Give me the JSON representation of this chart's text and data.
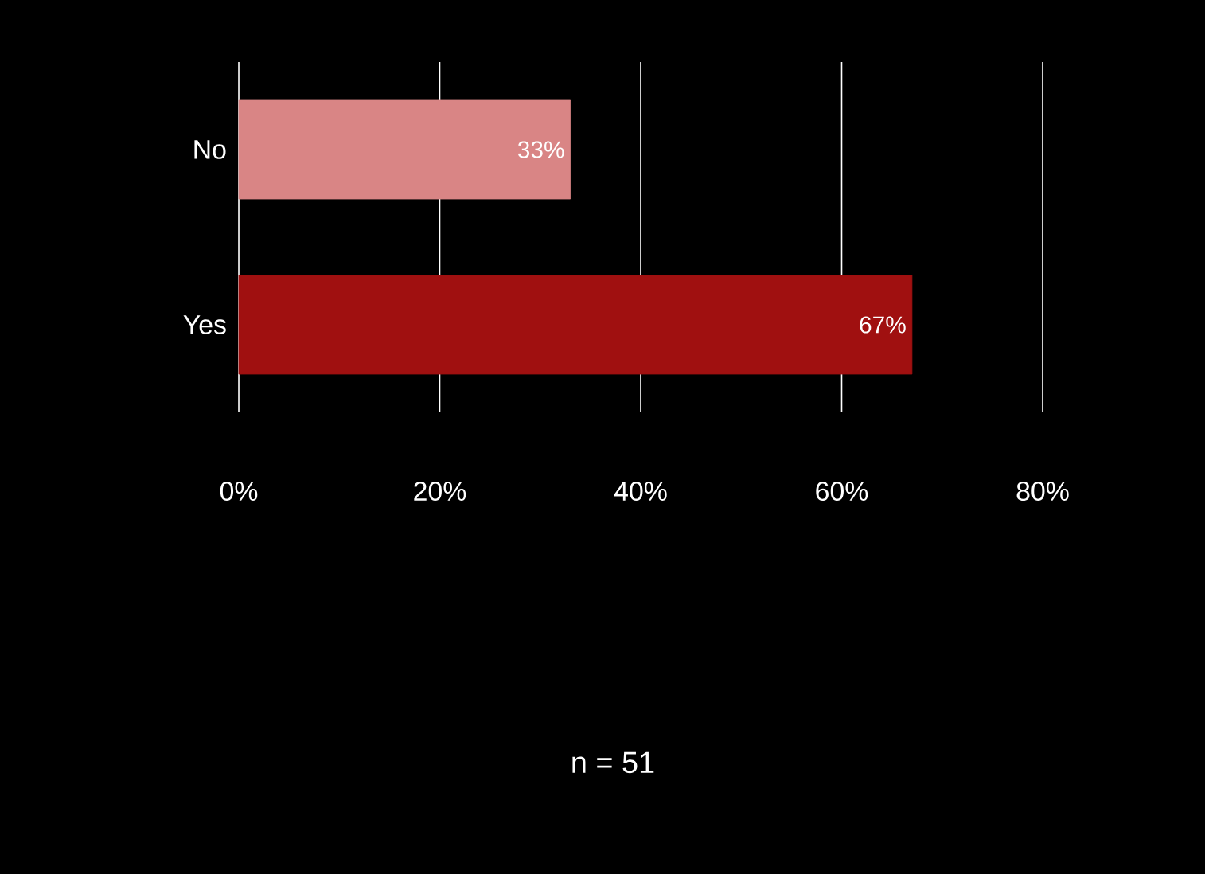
{
  "chart_data": {
    "type": "bar",
    "orientation": "horizontal",
    "categories": [
      "No",
      "Yes"
    ],
    "values": [
      33,
      67
    ],
    "colors": [
      "#d98585",
      "#a01010"
    ],
    "value_labels": [
      "33%",
      "67%"
    ],
    "xlim": [
      0,
      80
    ],
    "xticks": [
      {
        "value": 0,
        "label": "0%"
      },
      {
        "value": 20,
        "label": "20%"
      },
      {
        "value": 40,
        "label": "40%"
      },
      {
        "value": 60,
        "label": "60%"
      },
      {
        "value": 80,
        "label": "80%"
      }
    ],
    "grid": "x",
    "annotations": [
      "n = 51"
    ]
  }
}
